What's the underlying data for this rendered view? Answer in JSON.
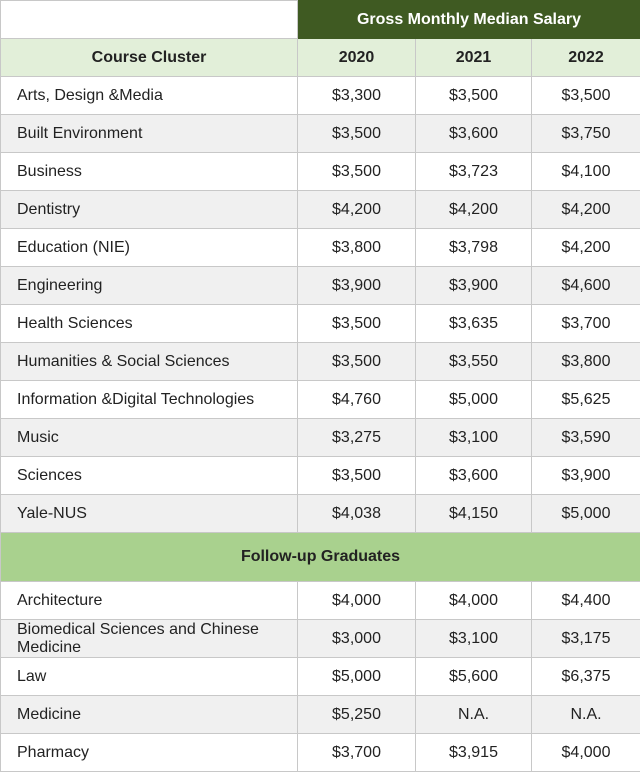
{
  "table": {
    "group_header": "Gross Monthly Median Salary",
    "columns": [
      "Course Cluster",
      "2020",
      "2021",
      "2022"
    ],
    "rows": [
      {
        "name": "Arts, Design &Media",
        "v2020": "$3,300",
        "v2021": "$3,500",
        "v2022": "$3,500"
      },
      {
        "name": "Built Environment",
        "v2020": "$3,500",
        "v2021": "$3,600",
        "v2022": "$3,750"
      },
      {
        "name": "Business",
        "v2020": "$3,500",
        "v2021": "$3,723",
        "v2022": "$4,100"
      },
      {
        "name": "Dentistry",
        "v2020": "$4,200",
        "v2021": "$4,200",
        "v2022": "$4,200"
      },
      {
        "name": "Education (NIE)",
        "v2020": "$3,800",
        "v2021": "$3,798",
        "v2022": "$4,200"
      },
      {
        "name": "Engineering",
        "v2020": "$3,900",
        "v2021": "$3,900",
        "v2022": "$4,600"
      },
      {
        "name": "Health Sciences",
        "v2020": "$3,500",
        "v2021": "$3,635",
        "v2022": "$3,700"
      },
      {
        "name": "Humanities & Social Sciences",
        "v2020": "$3,500",
        "v2021": "$3,550",
        "v2022": "$3,800"
      },
      {
        "name": "Information &Digital Technologies",
        "v2020": "$4,760",
        "v2021": "$5,000",
        "v2022": "$5,625"
      },
      {
        "name": "Music",
        "v2020": "$3,275",
        "v2021": "$3,100",
        "v2022": "$3,590"
      },
      {
        "name": "Sciences",
        "v2020": "$3,500",
        "v2021": "$3,600",
        "v2022": "$3,900"
      },
      {
        "name": "Yale-NUS",
        "v2020": "$4,038",
        "v2021": "$4,150",
        "v2022": "$5,000"
      }
    ],
    "section_header": "Follow-up Graduates",
    "followup_rows": [
      {
        "name": "Architecture",
        "v2020": "$4,000",
        "v2021": "$4,000",
        "v2022": "$4,400"
      },
      {
        "name": "Biomedical Sciences and Chinese Medicine",
        "v2020": "$3,000",
        "v2021": "$3,100",
        "v2022": "$3,175"
      },
      {
        "name": "Law",
        "v2020": "$5,000",
        "v2021": "$5,600",
        "v2022": "$6,375"
      },
      {
        "name": "Medicine",
        "v2020": "$5,250",
        "v2021": "N.A.",
        "v2022": "N.A."
      },
      {
        "name": "Pharmacy",
        "v2020": "$3,700",
        "v2021": "$3,915",
        "v2022": "$4,000"
      }
    ]
  }
}
